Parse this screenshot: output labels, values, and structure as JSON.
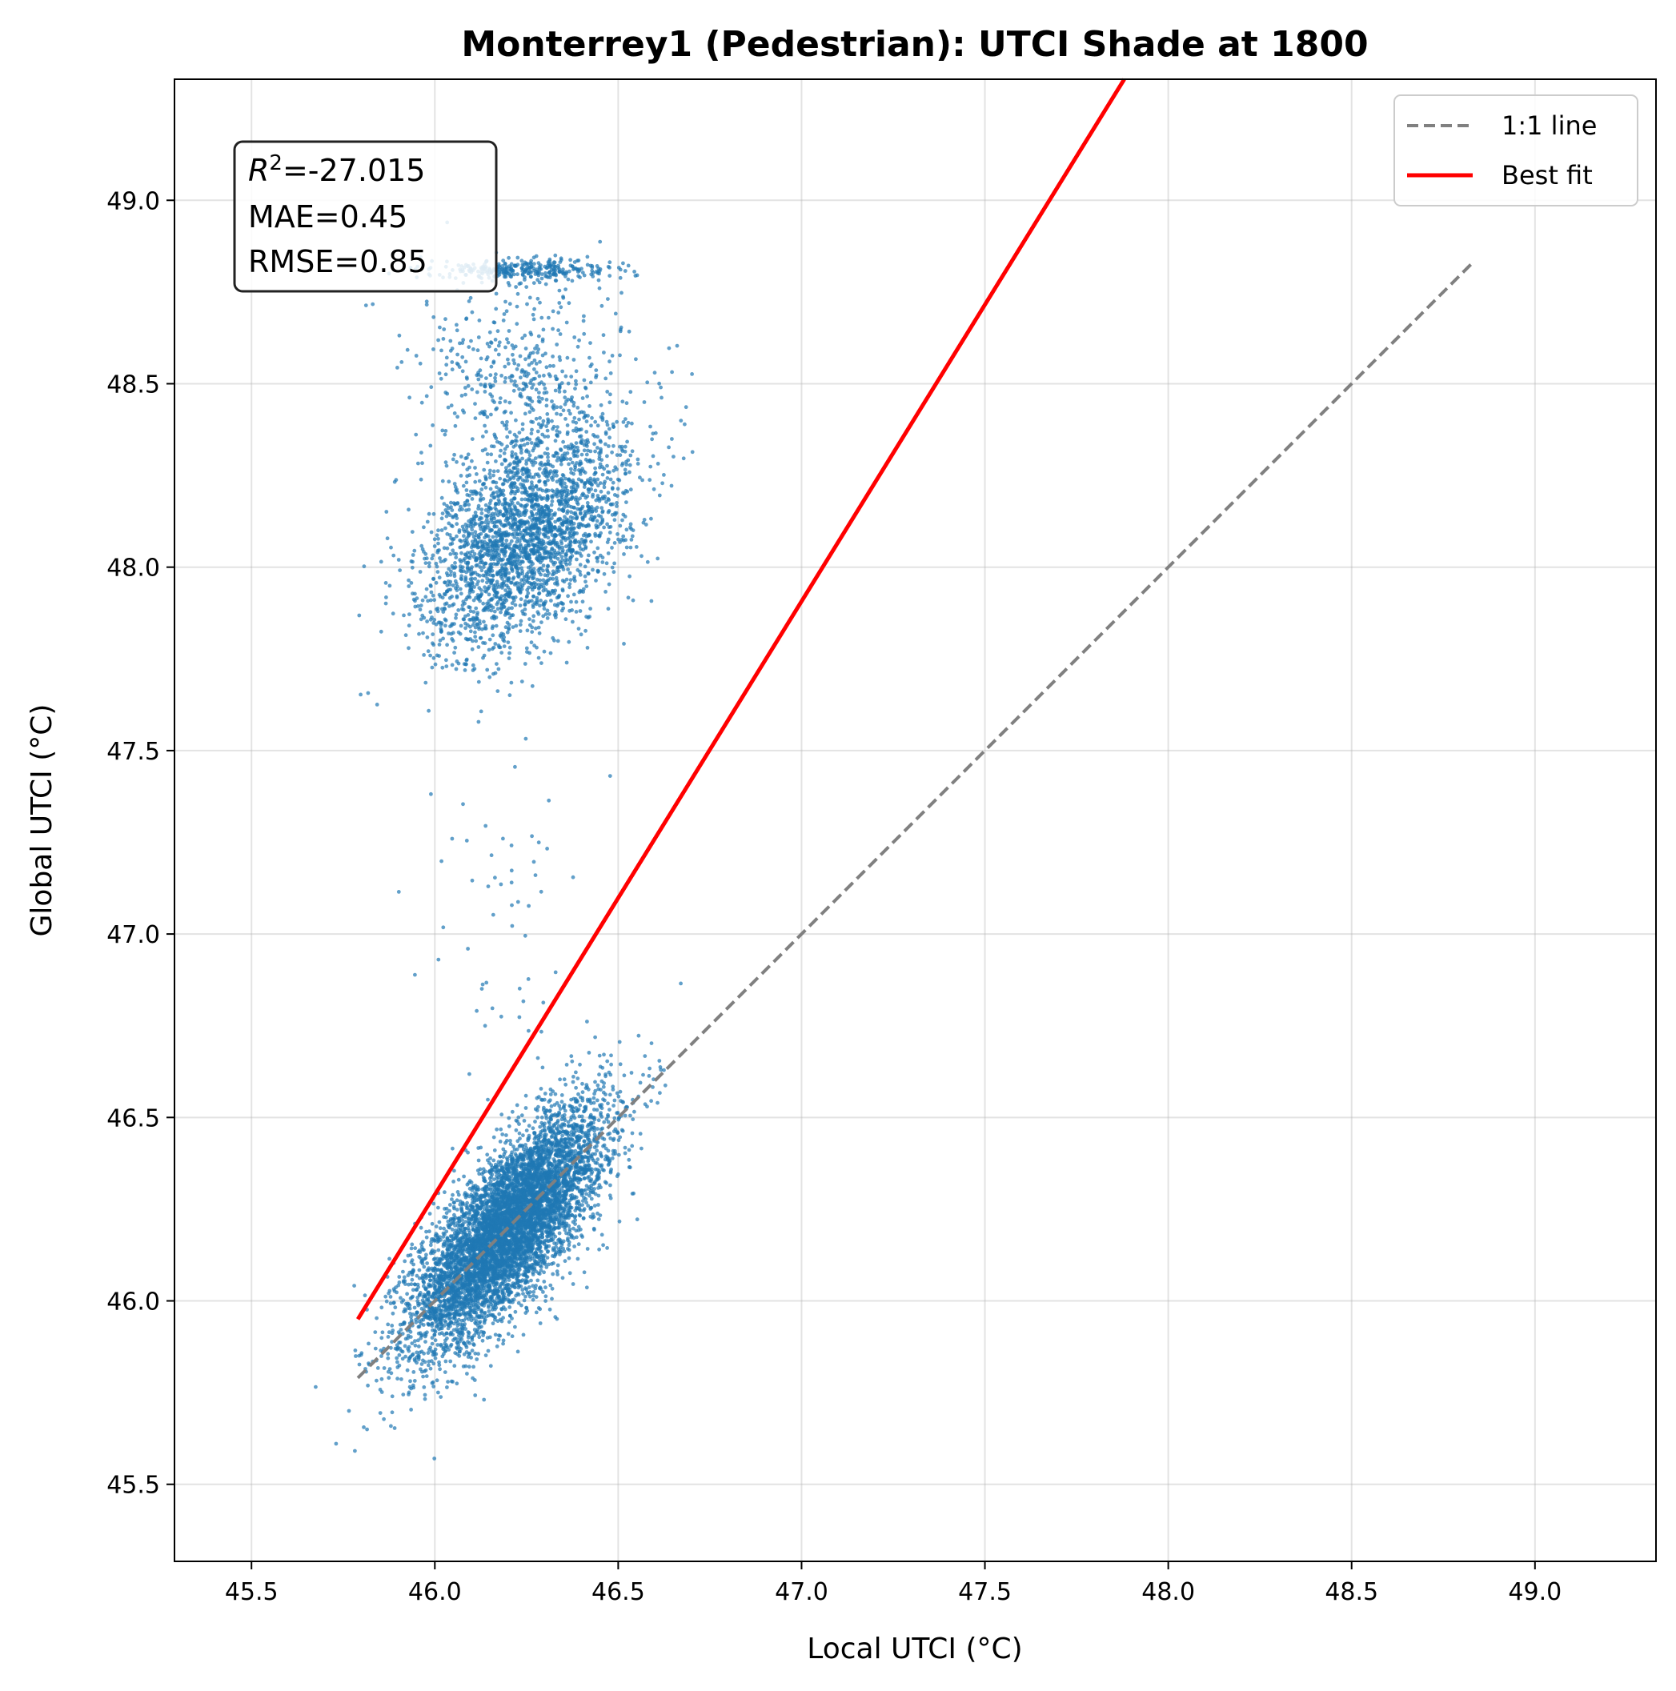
{
  "chart_data": {
    "type": "scatter",
    "title": "Monterrey1 (Pedestrian): UTCI Shade at 1800",
    "xlabel": "Local UTCI (°C)",
    "ylabel": "Global UTCI (°C)",
    "xlim": [
      45.29,
      49.33
    ],
    "ylim": [
      45.29,
      49.33
    ],
    "xticks": [
      "45.5",
      "46.0",
      "46.5",
      "47.0",
      "47.5",
      "48.0",
      "48.5",
      "49.0"
    ],
    "yticks": [
      "45.5",
      "46.0",
      "46.5",
      "47.0",
      "47.5",
      "48.0",
      "48.5",
      "49.0"
    ],
    "grid": true,
    "legend_position": "top-right",
    "colors": {
      "points": "#1f77b4",
      "identity": "#808080",
      "fit": "#ff0000"
    },
    "stats": {
      "r2": "=-27.015",
      "mae": "MAE=0.45",
      "rmse": "RMSE=0.85"
    },
    "lines": [
      {
        "name": "1:1 line",
        "style": "dashed",
        "x": [
          45.79,
          48.83
        ],
        "y": [
          45.79,
          48.83
        ]
      },
      {
        "name": "Best fit",
        "style": "solid",
        "x": [
          45.79,
          47.88
        ],
        "y": [
          45.95,
          49.33
        ]
      }
    ],
    "clusters": [
      {
        "cx": 46.2,
        "cy": 46.2,
        "sx": 0.13,
        "sy": 0.16,
        "rho": 0.75,
        "count": 6500
      },
      {
        "cx": 46.25,
        "cy": 48.08,
        "sx": 0.14,
        "sy": 0.15,
        "rho": 0.45,
        "count": 2600
      },
      {
        "cx": 46.25,
        "cy": 48.81,
        "sx": 0.12,
        "sy": 0.015,
        "rho": 0.0,
        "count": 300
      },
      {
        "cx": 46.25,
        "cy": 48.5,
        "sx": 0.14,
        "sy": 0.15,
        "rho": 0.0,
        "count": 500
      },
      {
        "cx": 46.2,
        "cy": 47.1,
        "sx": 0.1,
        "sy": 0.3,
        "rho": 0.0,
        "count": 60
      }
    ]
  }
}
